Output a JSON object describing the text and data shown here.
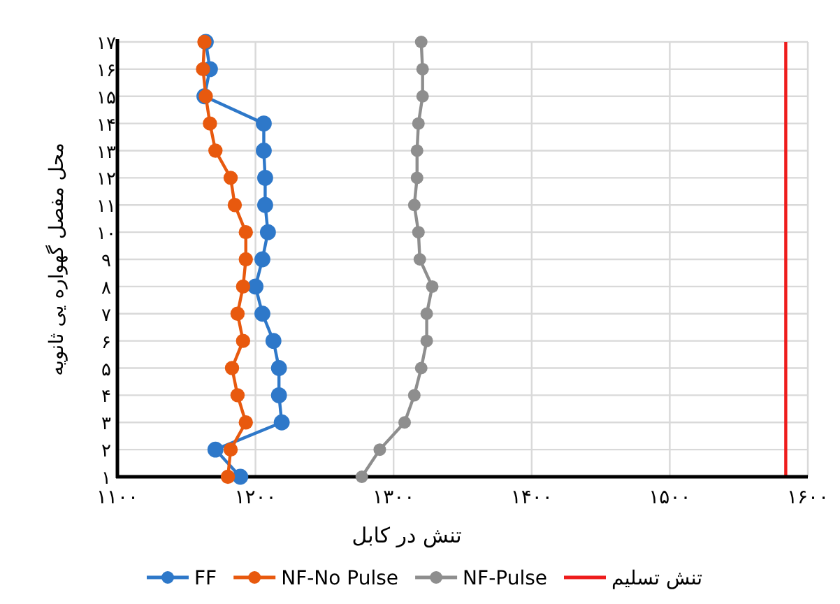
{
  "chart_data": {
    "type": "line",
    "xlabel": "تنش در کابل",
    "ylabel": "محل مفصل گهواره یی ثانویه",
    "xlim": [
      1100,
      1600
    ],
    "xticks": [
      {
        "value": 1100,
        "label": "۱۱۰۰"
      },
      {
        "value": 1200,
        "label": "۱۲۰۰"
      },
      {
        "value": 1300,
        "label": "۱۳۰۰"
      },
      {
        "value": 1400,
        "label": "۱۴۰۰"
      },
      {
        "value": 1500,
        "label": "۱۵۰۰"
      },
      {
        "value": 1600,
        "label": "۱۶۰۰"
      }
    ],
    "ylim": [
      1,
      17
    ],
    "yticks": [
      {
        "value": 1,
        "label": "۱"
      },
      {
        "value": 2,
        "label": "۲"
      },
      {
        "value": 3,
        "label": "۳"
      },
      {
        "value": 4,
        "label": "۴"
      },
      {
        "value": 5,
        "label": "۵"
      },
      {
        "value": 6,
        "label": "۶"
      },
      {
        "value": 7,
        "label": "۷"
      },
      {
        "value": 8,
        "label": "۸"
      },
      {
        "value": 9,
        "label": "۹"
      },
      {
        "value": 10,
        "label": "۱۰"
      },
      {
        "value": 11,
        "label": "۱۱"
      },
      {
        "value": 12,
        "label": "۱۲"
      },
      {
        "value": 13,
        "label": "۱۳"
      },
      {
        "value": 14,
        "label": "۱۴"
      },
      {
        "value": 15,
        "label": "۱۵"
      },
      {
        "value": 16,
        "label": "۱۶"
      },
      {
        "value": 17,
        "label": "۱۷"
      }
    ],
    "grid": true,
    "legend": "bottom",
    "marker": "circle",
    "line_style": "solid",
    "series": [
      {
        "name": "FF",
        "color": "#2e78c9",
        "x": [
          1189,
          1171,
          1219,
          1217,
          1217,
          1213,
          1205,
          1200,
          1205,
          1209,
          1207,
          1207,
          1206,
          1206,
          1163,
          1167,
          1164
        ],
        "values": [
          1,
          2,
          3,
          4,
          5,
          6,
          7,
          8,
          9,
          10,
          11,
          12,
          13,
          14,
          15,
          16,
          17
        ]
      },
      {
        "name": "NF-No Pulse",
        "color": "#e8590e",
        "x": [
          1180,
          1182,
          1193,
          1187,
          1183,
          1191,
          1187,
          1191,
          1193,
          1193,
          1185,
          1182,
          1171,
          1167,
          1164,
          1162,
          1163
        ],
        "values": [
          1,
          2,
          3,
          4,
          5,
          6,
          7,
          8,
          9,
          10,
          11,
          12,
          13,
          14,
          15,
          16,
          17
        ]
      },
      {
        "name": "NF-Pulse",
        "color": "#8e8e8e",
        "x": [
          1277,
          1290,
          1308,
          1315,
          1320,
          1324,
          1324,
          1328,
          1319,
          1318,
          1315,
          1317,
          1317,
          1318,
          1321,
          1321,
          1320
        ],
        "values": [
          1,
          2,
          3,
          4,
          5,
          6,
          7,
          8,
          9,
          10,
          11,
          12,
          13,
          14,
          15,
          16,
          17
        ]
      }
    ],
    "ref_lines": [
      {
        "axis": "x",
        "value": 1584,
        "label": "تنش تسلیم",
        "color": "#ee1c1c",
        "line_style": "solid"
      }
    ]
  }
}
